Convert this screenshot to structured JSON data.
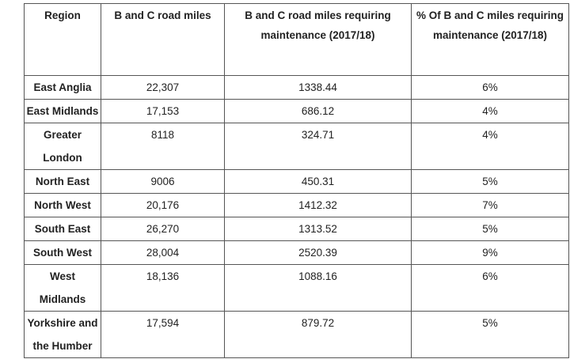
{
  "table": {
    "header": [
      "Region",
      "B and C road miles",
      "B and C road miles requiring maintenance (2017/18)",
      "% Of B and C miles requiring maintenance (2017/18)"
    ],
    "rows": [
      [
        "East Anglia",
        "22,307",
        "1338.44",
        "6%"
      ],
      [
        "East Midlands",
        "17,153",
        "686.12",
        "4%"
      ],
      [
        "Greater London",
        "8118",
        "324.71",
        "4%"
      ],
      [
        "North East",
        "9006",
        "450.31",
        "5%"
      ],
      [
        "North West",
        "20,176",
        "1412.32",
        "7%"
      ],
      [
        "South East",
        "26,270",
        "1313.52",
        "5%"
      ],
      [
        "South West",
        "28,004",
        "2520.39",
        "9%"
      ],
      [
        "West Midlands",
        "18,136",
        "1088.16",
        "6%"
      ],
      [
        "Yorkshire and the Humber",
        "17,594",
        "879.72",
        "5%"
      ]
    ]
  }
}
